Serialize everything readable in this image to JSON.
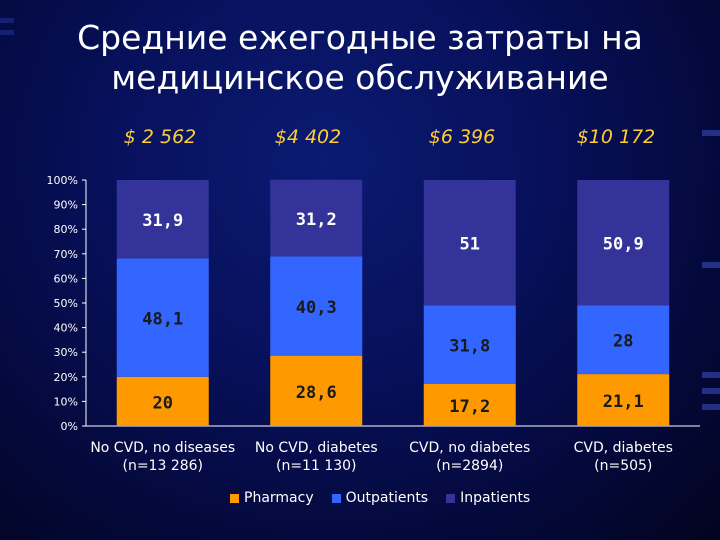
{
  "title_line1": "Средние ежегодные затраты на",
  "title_line2": "медицинское обслуживание",
  "costs": [
    "$ 2 562",
    "$4 402",
    "$6 396",
    "$10 172"
  ],
  "colors": {
    "pharmacy": "#ff9900",
    "outpatients": "#3366ff",
    "inpatients": "#333399",
    "label_dark": "#1a1a1a",
    "label_light": "#ffffff"
  },
  "chart_data": {
    "type": "bar",
    "stacked": true,
    "categories": [
      [
        "No CVD, no diseases",
        "(n=13 286)"
      ],
      [
        "No CVD, diabetes",
        "(n=11 130)"
      ],
      [
        "CVD, no diabetes",
        "(n=2894)"
      ],
      [
        "CVD, diabetes",
        "(n=505)"
      ]
    ],
    "series": [
      {
        "name": "Pharmacy",
        "values": [
          20,
          28.6,
          17.2,
          21.1
        ],
        "labels": [
          "20",
          "28,6",
          "17,2",
          "21,1"
        ]
      },
      {
        "name": "Outpatients",
        "values": [
          48.1,
          40.3,
          31.8,
          28
        ],
        "labels": [
          "48,1",
          "40,3",
          "31,8",
          "28"
        ]
      },
      {
        "name": "Inpatients",
        "values": [
          31.9,
          31.2,
          51,
          50.9
        ],
        "labels": [
          "31,9",
          "31,2",
          "51",
          "50,9"
        ]
      }
    ],
    "ylim": [
      0,
      100
    ],
    "yticks": [
      "0%",
      "10%",
      "20%",
      "30%",
      "40%",
      "50%",
      "60%",
      "70%",
      "80%",
      "90%",
      "100%"
    ],
    "legend_position": "bottom"
  }
}
